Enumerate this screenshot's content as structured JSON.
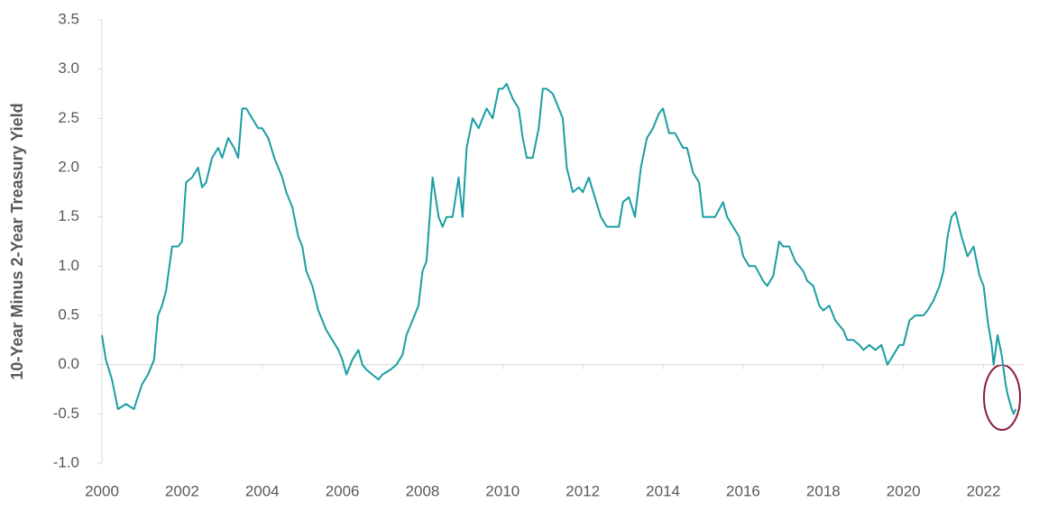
{
  "chart_data": {
    "type": "line",
    "y_label": "10-Year Minus 2-Year Treasury Yield",
    "xlim": [
      2000,
      2023
    ],
    "xticks": [
      2000,
      2002,
      2004,
      2006,
      2008,
      2010,
      2012,
      2014,
      2016,
      2018,
      2020,
      2022
    ],
    "ylim": [
      -1.0,
      3.5
    ],
    "yticks": [
      {
        "value": -1.0,
        "label": "-1.0"
      },
      -0.5,
      {
        "value": 0.0,
        "label": "0.0"
      },
      0.5,
      {
        "value": 1.0,
        "label": "1.0"
      },
      1.5,
      {
        "value": 2.0,
        "label": "2.0"
      },
      2.5,
      {
        "value": 3.0,
        "label": "3.0"
      },
      3.5
    ],
    "grid": false,
    "series": [
      {
        "color": "#1a9ea3",
        "x": [
          2000.0,
          2000.1,
          2000.25,
          2000.4,
          2000.6,
          2000.8,
          2001.0,
          2001.15,
          2001.3,
          2001.4,
          2001.5,
          2001.6,
          2001.75,
          2001.9,
          2002.0,
          2002.1,
          2002.25,
          2002.4,
          2002.5,
          2002.6,
          2002.75,
          2002.9,
          2003.0,
          2003.15,
          2003.3,
          2003.4,
          2003.5,
          2003.6,
          2003.75,
          2003.9,
          2004.0,
          2004.15,
          2004.3,
          2004.5,
          2004.6,
          2004.75,
          2004.9,
          2005.0,
          2005.1,
          2005.25,
          2005.4,
          2005.6,
          2005.75,
          2005.9,
          2006.0,
          2006.1,
          2006.25,
          2006.4,
          2006.5,
          2006.6,
          2006.75,
          2006.9,
          2007.0,
          2007.2,
          2007.35,
          2007.5,
          2007.6,
          2007.75,
          2007.9,
          2008.0,
          2008.1,
          2008.25,
          2008.4,
          2008.5,
          2008.6,
          2008.75,
          2008.9,
          2009.0,
          2009.1,
          2009.25,
          2009.4,
          2009.5,
          2009.6,
          2009.75,
          2009.9,
          2010.0,
          2010.1,
          2010.25,
          2010.4,
          2010.5,
          2010.6,
          2010.75,
          2010.9,
          2011.0,
          2011.1,
          2011.25,
          2011.4,
          2011.5,
          2011.6,
          2011.75,
          2011.9,
          2012.0,
          2012.15,
          2012.3,
          2012.45,
          2012.6,
          2012.75,
          2012.9,
          2013.0,
          2013.15,
          2013.3,
          2013.45,
          2013.6,
          2013.75,
          2013.9,
          2014.0,
          2014.15,
          2014.3,
          2014.5,
          2014.6,
          2014.75,
          2014.9,
          2015.0,
          2015.15,
          2015.3,
          2015.5,
          2015.6,
          2015.75,
          2015.9,
          2016.0,
          2016.15,
          2016.3,
          2016.5,
          2016.6,
          2016.75,
          2016.9,
          2017.0,
          2017.15,
          2017.3,
          2017.5,
          2017.6,
          2017.75,
          2017.9,
          2018.0,
          2018.15,
          2018.3,
          2018.5,
          2018.6,
          2018.75,
          2018.9,
          2019.0,
          2019.15,
          2019.3,
          2019.45,
          2019.6,
          2019.75,
          2019.9,
          2020.0,
          2020.15,
          2020.3,
          2020.5,
          2020.6,
          2020.75,
          2020.9,
          2021.0,
          2021.1,
          2021.2,
          2021.3,
          2021.45,
          2021.6,
          2021.75,
          2021.9,
          2022.0,
          2022.1,
          2022.2,
          2022.25,
          2022.35,
          2022.45,
          2022.55,
          2022.6,
          2022.7,
          2022.75,
          2022.8
        ],
        "values": [
          0.3,
          0.05,
          -0.15,
          -0.45,
          -0.4,
          -0.45,
          -0.2,
          -0.1,
          0.05,
          0.5,
          0.6,
          0.75,
          1.2,
          1.2,
          1.25,
          1.85,
          1.9,
          2.0,
          1.8,
          1.85,
          2.1,
          2.2,
          2.1,
          2.3,
          2.2,
          2.1,
          2.6,
          2.6,
          2.5,
          2.4,
          2.4,
          2.3,
          2.1,
          1.9,
          1.75,
          1.6,
          1.3,
          1.2,
          0.95,
          0.8,
          0.55,
          0.35,
          0.25,
          0.15,
          0.05,
          -0.1,
          0.05,
          0.15,
          0.0,
          -0.05,
          -0.1,
          -0.15,
          -0.1,
          -0.05,
          0.0,
          0.1,
          0.3,
          0.45,
          0.6,
          0.95,
          1.05,
          1.9,
          1.5,
          1.4,
          1.5,
          1.5,
          1.9,
          1.5,
          2.2,
          2.5,
          2.4,
          2.5,
          2.6,
          2.5,
          2.8,
          2.8,
          2.85,
          2.7,
          2.6,
          2.3,
          2.1,
          2.1,
          2.4,
          2.8,
          2.8,
          2.75,
          2.6,
          2.5,
          2.0,
          1.75,
          1.8,
          1.75,
          1.9,
          1.7,
          1.5,
          1.4,
          1.4,
          1.4,
          1.65,
          1.7,
          1.5,
          2.0,
          2.3,
          2.4,
          2.55,
          2.6,
          2.35,
          2.35,
          2.2,
          2.2,
          1.95,
          1.85,
          1.5,
          1.5,
          1.5,
          1.65,
          1.5,
          1.4,
          1.3,
          1.1,
          1.0,
          1.0,
          0.85,
          0.8,
          0.9,
          1.25,
          1.2,
          1.2,
          1.05,
          0.95,
          0.85,
          0.8,
          0.6,
          0.55,
          0.6,
          0.45,
          0.35,
          0.25,
          0.25,
          0.2,
          0.15,
          0.2,
          0.15,
          0.2,
          0.0,
          0.1,
          0.2,
          0.2,
          0.45,
          0.5,
          0.5,
          0.55,
          0.65,
          0.8,
          0.95,
          1.3,
          1.5,
          1.55,
          1.3,
          1.1,
          1.2,
          0.9,
          0.8,
          0.45,
          0.2,
          0.0,
          0.3,
          0.1,
          -0.2,
          -0.3,
          -0.45,
          -0.5,
          -0.45
        ]
      }
    ]
  }
}
